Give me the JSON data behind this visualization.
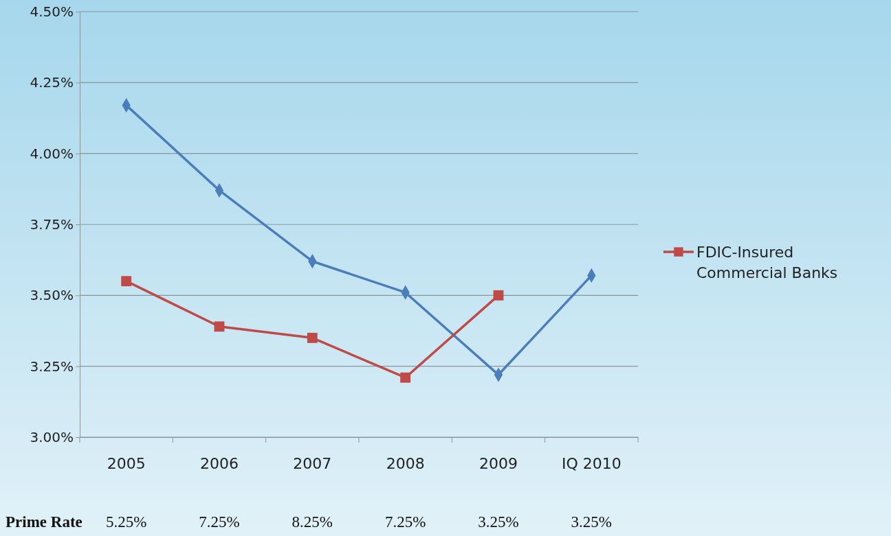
{
  "chart_data": {
    "type": "line",
    "categories": [
      "2005",
      "2006",
      "2007",
      "2008",
      "2009",
      "IQ 2010"
    ],
    "series": [
      {
        "color": "#4a7ebb",
        "marker": "diamond",
        "values": [
          4.17,
          3.87,
          3.62,
          3.51,
          3.22,
          3.57
        ]
      },
      {
        "name": "FDIC-Insured Commercial Banks",
        "color": "#be4b48",
        "marker": "square",
        "values": [
          3.55,
          3.39,
          3.35,
          3.21,
          3.5,
          null
        ]
      }
    ],
    "ylim": [
      3.0,
      4.5
    ],
    "yticks": [
      {
        "value": 3.0,
        "label": "3.00%"
      },
      {
        "value": 3.25,
        "label": "3.25%"
      },
      {
        "value": 3.5,
        "label": "3.50%"
      },
      {
        "value": 3.75,
        "label": "3.75%"
      },
      {
        "value": 4.0,
        "label": "4.00%"
      },
      {
        "value": 4.25,
        "label": "4.25%"
      },
      {
        "value": 4.5,
        "label": "4.50%"
      }
    ],
    "grid": "y",
    "legend": "right",
    "annotations": [
      "Prime Rate",
      "5.25%",
      "7.25%",
      "8.25%",
      "7.25%",
      "3.25%",
      "3.25%"
    ]
  }
}
